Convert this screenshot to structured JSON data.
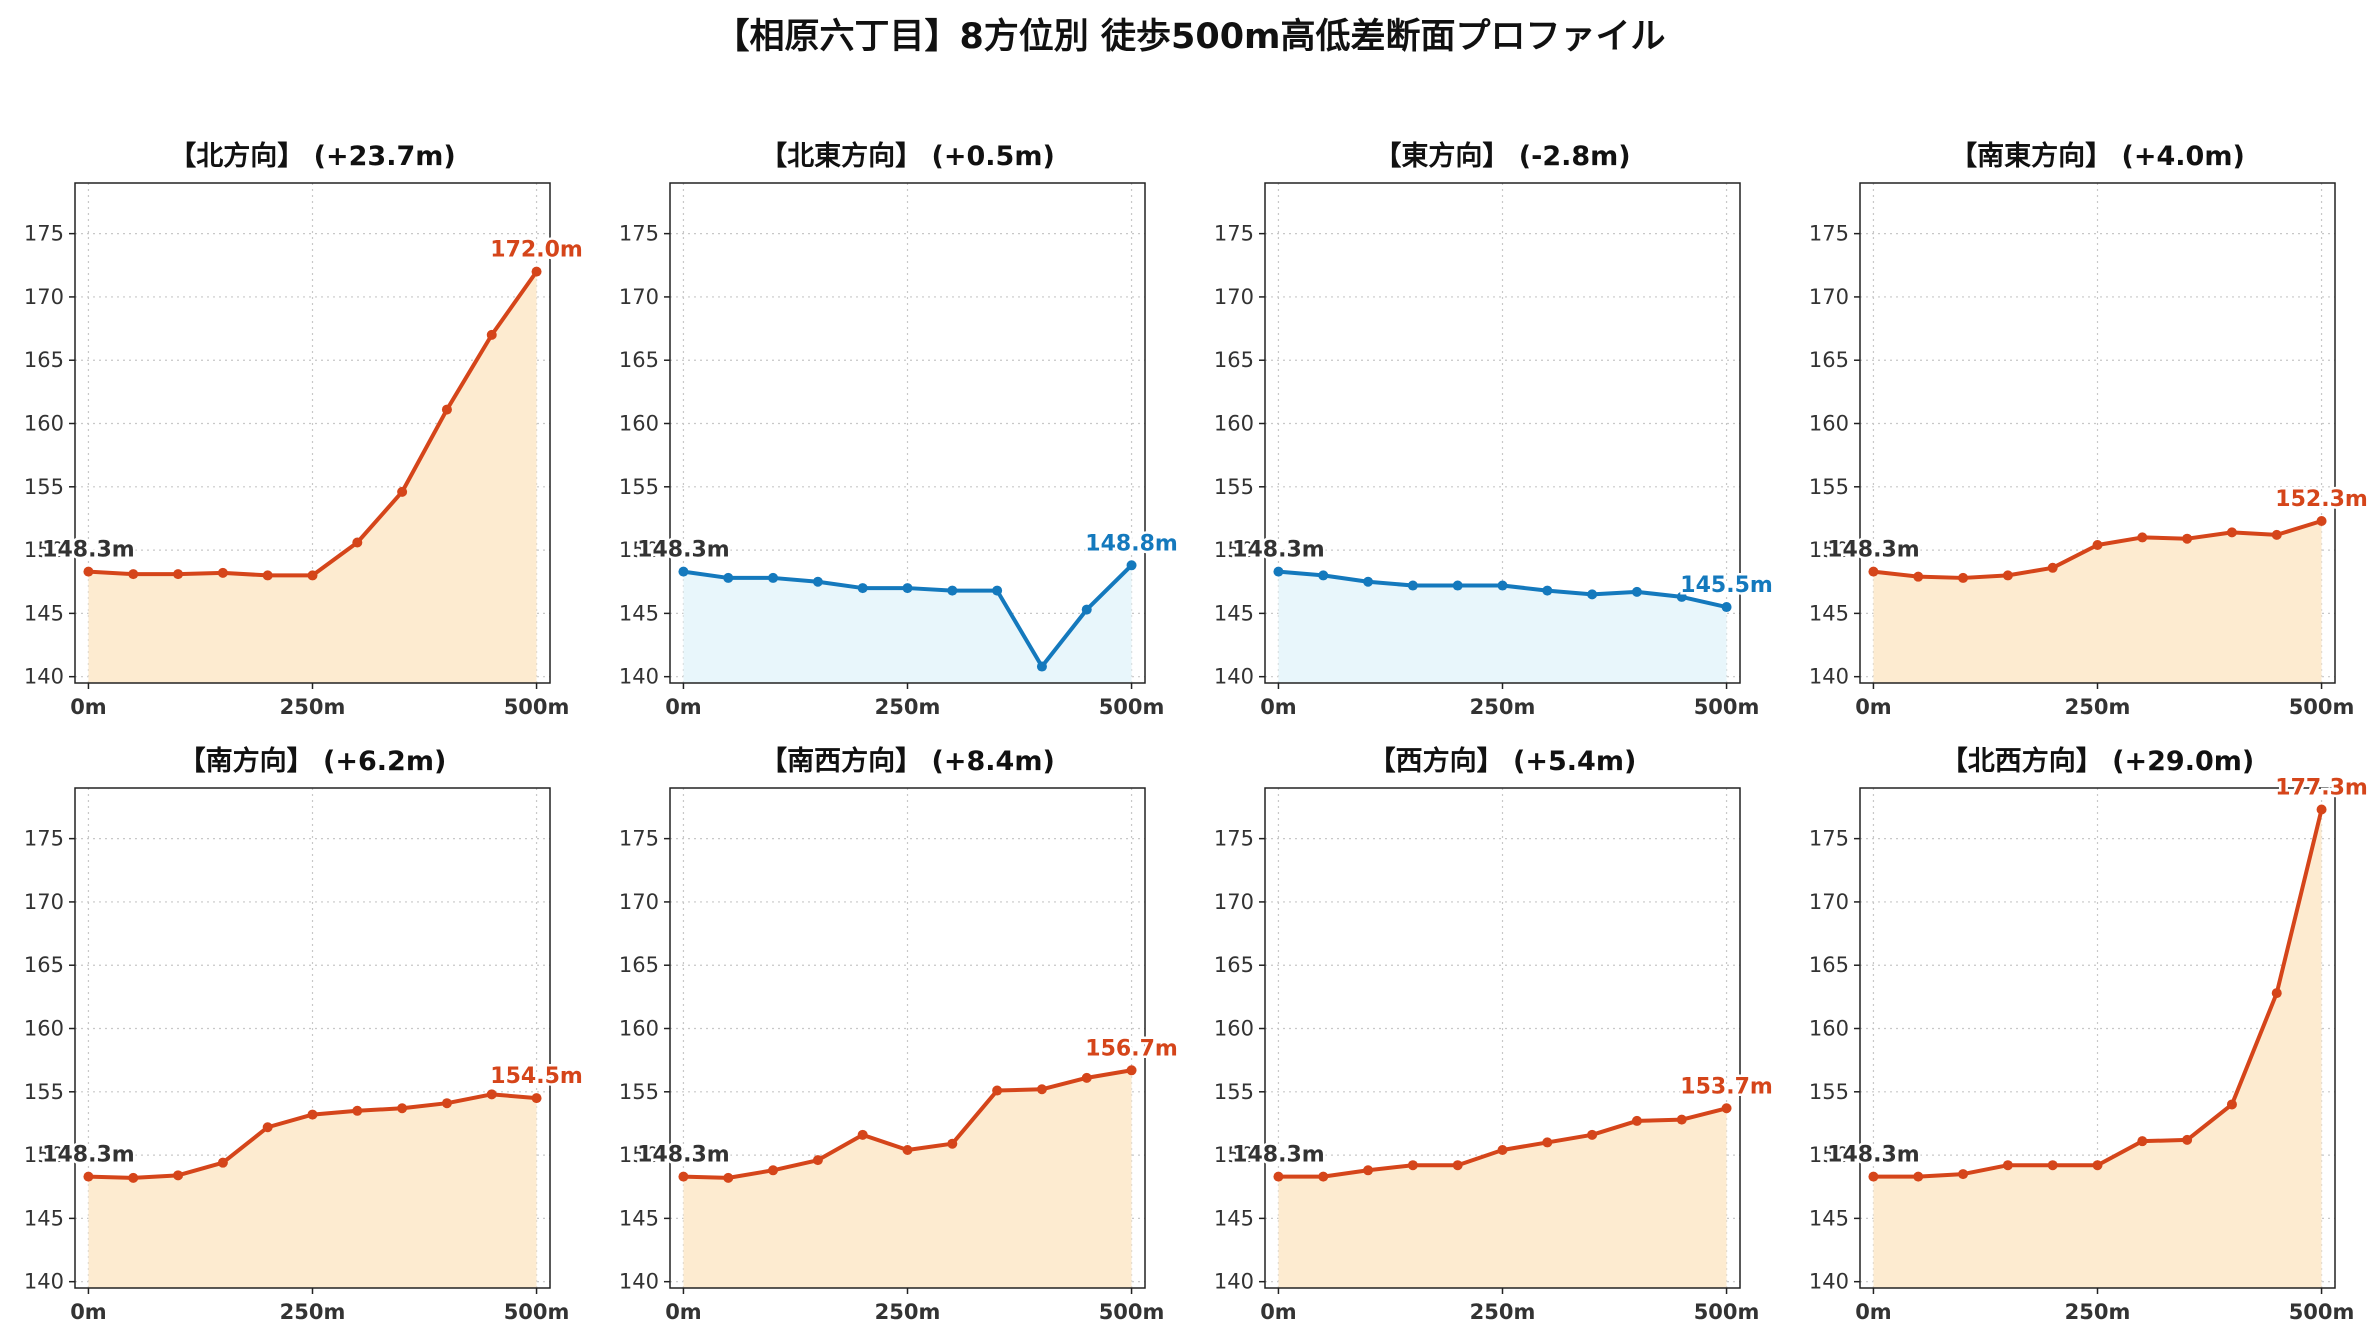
{
  "title": "【相原六丁目】8方位別 徒歩500m高低差断面プロファイル",
  "colors": {
    "up_line": "#d5451a",
    "up_fill": "#fdebd0",
    "down_line": "#1479bd",
    "down_fill": "#e8f6fb",
    "grid": "#c8c8c8",
    "axis": "#222222"
  },
  "chart_data": [
    {
      "type": "area",
      "title": "【北方向】 (+23.7m)",
      "trend": "up",
      "x": [
        0,
        50,
        100,
        150,
        200,
        250,
        300,
        350,
        400,
        450,
        500
      ],
      "y": [
        148.3,
        148.1,
        148.1,
        148.2,
        148.0,
        148.0,
        150.6,
        154.6,
        161.1,
        167.0,
        172.0
      ],
      "start_label": "148.3m",
      "end_label": "172.0m",
      "xticks": [
        0,
        250,
        500
      ],
      "xtick_labels": [
        "0m",
        "250m",
        "500m"
      ],
      "yticks": [
        140,
        145,
        150,
        155,
        160,
        165,
        170,
        175
      ],
      "xlim": [
        -15,
        515
      ],
      "ylim": [
        139.5,
        179
      ],
      "grid": true
    },
    {
      "type": "area",
      "title": "【北東方向】 (+0.5m)",
      "trend": "down",
      "x": [
        0,
        50,
        100,
        150,
        200,
        250,
        300,
        350,
        400,
        450,
        500
      ],
      "y": [
        148.3,
        147.8,
        147.8,
        147.5,
        147.0,
        147.0,
        146.8,
        146.8,
        140.8,
        145.3,
        148.8
      ],
      "start_label": "148.3m",
      "end_label": "148.8m",
      "xticks": [
        0,
        250,
        500
      ],
      "xtick_labels": [
        "0m",
        "250m",
        "500m"
      ],
      "yticks": [
        140,
        145,
        150,
        155,
        160,
        165,
        170,
        175
      ],
      "xlim": [
        -15,
        515
      ],
      "ylim": [
        139.5,
        179
      ],
      "grid": true
    },
    {
      "type": "area",
      "title": "【東方向】 (-2.8m)",
      "trend": "down",
      "x": [
        0,
        50,
        100,
        150,
        200,
        250,
        300,
        350,
        400,
        450,
        500
      ],
      "y": [
        148.3,
        148.0,
        147.5,
        147.2,
        147.2,
        147.2,
        146.8,
        146.5,
        146.7,
        146.3,
        145.5
      ],
      "start_label": "148.3m",
      "end_label": "145.5m",
      "xticks": [
        0,
        250,
        500
      ],
      "xtick_labels": [
        "0m",
        "250m",
        "500m"
      ],
      "yticks": [
        140,
        145,
        150,
        155,
        160,
        165,
        170,
        175
      ],
      "xlim": [
        -15,
        515
      ],
      "ylim": [
        139.5,
        179
      ],
      "grid": true
    },
    {
      "type": "area",
      "title": "【南東方向】 (+4.0m)",
      "trend": "up",
      "x": [
        0,
        50,
        100,
        150,
        200,
        250,
        300,
        350,
        400,
        450,
        500
      ],
      "y": [
        148.3,
        147.9,
        147.8,
        148.0,
        148.6,
        150.4,
        151.0,
        150.9,
        151.4,
        151.2,
        152.3
      ],
      "start_label": "148.3m",
      "end_label": "152.3m",
      "xticks": [
        0,
        250,
        500
      ],
      "xtick_labels": [
        "0m",
        "250m",
        "500m"
      ],
      "yticks": [
        140,
        145,
        150,
        155,
        160,
        165,
        170,
        175
      ],
      "xlim": [
        -15,
        515
      ],
      "ylim": [
        139.5,
        179
      ],
      "grid": true
    },
    {
      "type": "area",
      "title": "【南方向】 (+6.2m)",
      "trend": "up",
      "x": [
        0,
        50,
        100,
        150,
        200,
        250,
        300,
        350,
        400,
        450,
        500
      ],
      "y": [
        148.3,
        148.2,
        148.4,
        149.4,
        152.2,
        153.2,
        153.5,
        153.7,
        154.1,
        154.8,
        154.5
      ],
      "start_label": "148.3m",
      "end_label": "154.5m",
      "xticks": [
        0,
        250,
        500
      ],
      "xtick_labels": [
        "0m",
        "250m",
        "500m"
      ],
      "yticks": [
        140,
        145,
        150,
        155,
        160,
        165,
        170,
        175
      ],
      "xlim": [
        -15,
        515
      ],
      "ylim": [
        139.5,
        179
      ],
      "grid": true
    },
    {
      "type": "area",
      "title": "【南西方向】 (+8.4m)",
      "trend": "up",
      "x": [
        0,
        50,
        100,
        150,
        200,
        250,
        300,
        350,
        400,
        450,
        500
      ],
      "y": [
        148.3,
        148.2,
        148.8,
        149.6,
        151.6,
        150.4,
        150.9,
        155.1,
        155.2,
        156.1,
        156.7
      ],
      "start_label": "148.3m",
      "end_label": "156.7m",
      "xticks": [
        0,
        250,
        500
      ],
      "xtick_labels": [
        "0m",
        "250m",
        "500m"
      ],
      "yticks": [
        140,
        145,
        150,
        155,
        160,
        165,
        170,
        175
      ],
      "xlim": [
        -15,
        515
      ],
      "ylim": [
        139.5,
        179
      ],
      "grid": true
    },
    {
      "type": "area",
      "title": "【西方向】 (+5.4m)",
      "trend": "up",
      "x": [
        0,
        50,
        100,
        150,
        200,
        250,
        300,
        350,
        400,
        450,
        500
      ],
      "y": [
        148.3,
        148.3,
        148.8,
        149.2,
        149.2,
        150.4,
        151.0,
        151.6,
        152.7,
        152.8,
        153.7
      ],
      "start_label": "148.3m",
      "end_label": "153.7m",
      "xticks": [
        0,
        250,
        500
      ],
      "xtick_labels": [
        "0m",
        "250m",
        "500m"
      ],
      "yticks": [
        140,
        145,
        150,
        155,
        160,
        165,
        170,
        175
      ],
      "xlim": [
        -15,
        515
      ],
      "ylim": [
        139.5,
        179
      ],
      "grid": true
    },
    {
      "type": "area",
      "title": "【北西方向】 (+29.0m)",
      "trend": "up",
      "x": [
        0,
        50,
        100,
        150,
        200,
        250,
        300,
        350,
        400,
        450,
        500
      ],
      "y": [
        148.3,
        148.3,
        148.5,
        149.2,
        149.2,
        149.2,
        151.1,
        151.2,
        154.0,
        162.8,
        177.3
      ],
      "start_label": "148.3m",
      "end_label": "177.3m",
      "xticks": [
        0,
        250,
        500
      ],
      "xtick_labels": [
        "0m",
        "250m",
        "500m"
      ],
      "yticks": [
        140,
        145,
        150,
        155,
        160,
        165,
        170,
        175
      ],
      "xlim": [
        -15,
        515
      ],
      "ylim": [
        139.5,
        179
      ],
      "grid": true
    }
  ]
}
